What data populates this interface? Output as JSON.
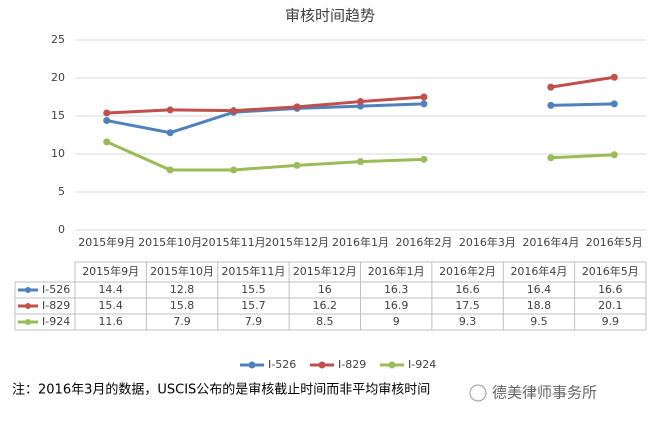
{
  "chart_data": {
    "type": "line",
    "title": "审核时间趋势",
    "categories": [
      "2015年9月",
      "2015年10月",
      "2015年11月",
      "2015年12月",
      "2016年1月",
      "2016年2月",
      "2016年3月",
      "2016年4月",
      "2016年5月"
    ],
    "series": [
      {
        "name": "I-526",
        "color": "#4f81bd",
        "values": [
          14.4,
          12.8,
          15.5,
          16,
          16.3,
          16.6,
          null,
          16.4,
          16.6
        ]
      },
      {
        "name": "I-829",
        "color": "#c0504d",
        "values": [
          15.4,
          15.8,
          15.7,
          16.2,
          16.9,
          17.5,
          null,
          18.8,
          20.1
        ]
      },
      {
        "name": "I-924",
        "color": "#9bbb59",
        "values": [
          11.6,
          7.9,
          7.9,
          8.5,
          9,
          9.3,
          null,
          9.5,
          9.9
        ]
      }
    ],
    "ylim": [
      0,
      25
    ],
    "yticks": [
      0,
      5,
      10,
      15,
      20,
      25
    ],
    "grid": true,
    "legend": "bottom",
    "note": "注：2016年3月的数据，USCIS公布的是审核截止时间而非平均审核时间",
    "watermark": "德美律师事务所"
  }
}
